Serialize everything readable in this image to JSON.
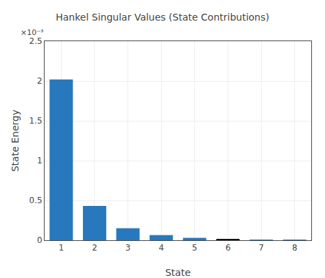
{
  "chart_data": {
    "type": "bar",
    "title": "Hankel Singular Values (State Contributions)",
    "xlabel": "State",
    "ylabel": "State Energy",
    "x": [
      1,
      2,
      3,
      4,
      5,
      6,
      7,
      8
    ],
    "values": [
      0.00202,
      0.00043,
      0.00015,
      6.5e-05,
      3e-05,
      1.2e-05,
      5e-07,
      2e-07
    ],
    "colors": [
      "#2878bd",
      "#2878bd",
      "#2878bd",
      "#2878bd",
      "#2878bd",
      "#111111",
      "#2878bd",
      "#2878bd"
    ],
    "xlim": [
      0.5,
      8.5
    ],
    "xticks": [
      1,
      2,
      3,
      4,
      5,
      6,
      7,
      8
    ],
    "ylim": [
      0,
      0.0025
    ],
    "yticks": [
      0,
      {
        "value": 0.0005,
        "label": "0.5"
      },
      {
        "value": 0.001,
        "label": "1"
      },
      {
        "value": 0.0015,
        "label": "1.5"
      },
      {
        "value": 0.002,
        "label": "2"
      },
      {
        "value": 0.0025,
        "label": "2.5"
      }
    ],
    "annotation": "×10⁻³",
    "grid": true
  }
}
